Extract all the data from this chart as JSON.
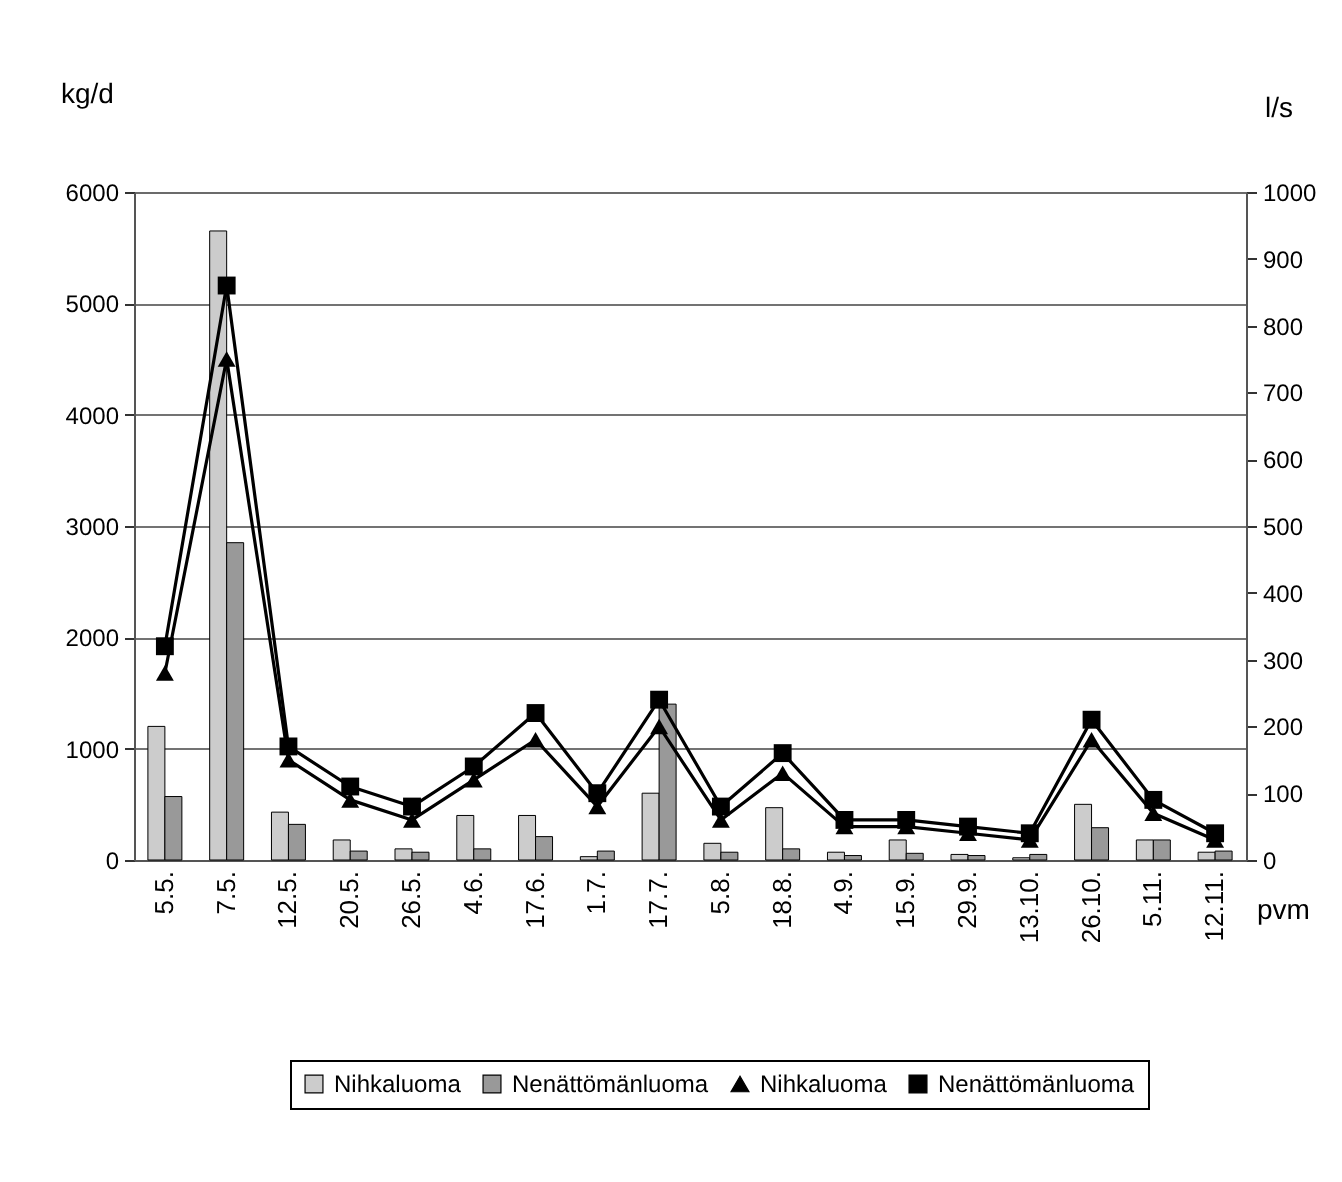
{
  "chart_data": {
    "type": "bar",
    "categories": [
      "5.5.",
      "7.5.",
      "12.5.",
      "20.5.",
      "26.5.",
      "4.6.",
      "17.6.",
      "1.7.",
      "17.7.",
      "5.8.",
      "18.8.",
      "4.9.",
      "15.9.",
      "29.9.",
      "13.10.",
      "26.10.",
      "5.11.",
      "12.11."
    ],
    "series": [
      {
        "name": "Nihkaluoma",
        "color": "#cccccc",
        "values": [
          1200,
          5650,
          430,
          180,
          100,
          400,
          400,
          30,
          600,
          150,
          470,
          70,
          180,
          50,
          20,
          500,
          180,
          70
        ]
      },
      {
        "name": "Nenättömänluoma",
        "color": "#999999",
        "values": [
          570,
          2850,
          320,
          80,
          70,
          100,
          210,
          80,
          1400,
          70,
          100,
          40,
          60,
          40,
          50,
          290,
          180,
          80
        ]
      },
      {
        "name": "Nihkaluoma",
        "type": "line",
        "axis": "y2",
        "color": "#000000",
        "marker": "triangle",
        "values": [
          280,
          750,
          150,
          90,
          60,
          120,
          180,
          80,
          200,
          60,
          130,
          50,
          50,
          40,
          30,
          180,
          70,
          30
        ]
      },
      {
        "name": "Nenättömänluoma",
        "type": "line",
        "axis": "y2",
        "color": "#000000",
        "marker": "square",
        "values": [
          320,
          860,
          170,
          110,
          80,
          140,
          220,
          100,
          240,
          80,
          160,
          60,
          60,
          50,
          40,
          210,
          90,
          40
        ]
      }
    ],
    "xlabel": "pvm",
    "ylabel": "kg/d",
    "y2label": "l/s",
    "ylim": [
      0,
      6000
    ],
    "yticks": [
      0,
      1000,
      2000,
      3000,
      4000,
      5000,
      6000
    ],
    "y2lim": [
      0,
      1000
    ],
    "y2ticks": [
      0,
      100,
      200,
      300,
      400,
      500,
      600,
      700,
      800,
      900,
      1000
    ],
    "grid": "y",
    "legend": "bottom"
  }
}
